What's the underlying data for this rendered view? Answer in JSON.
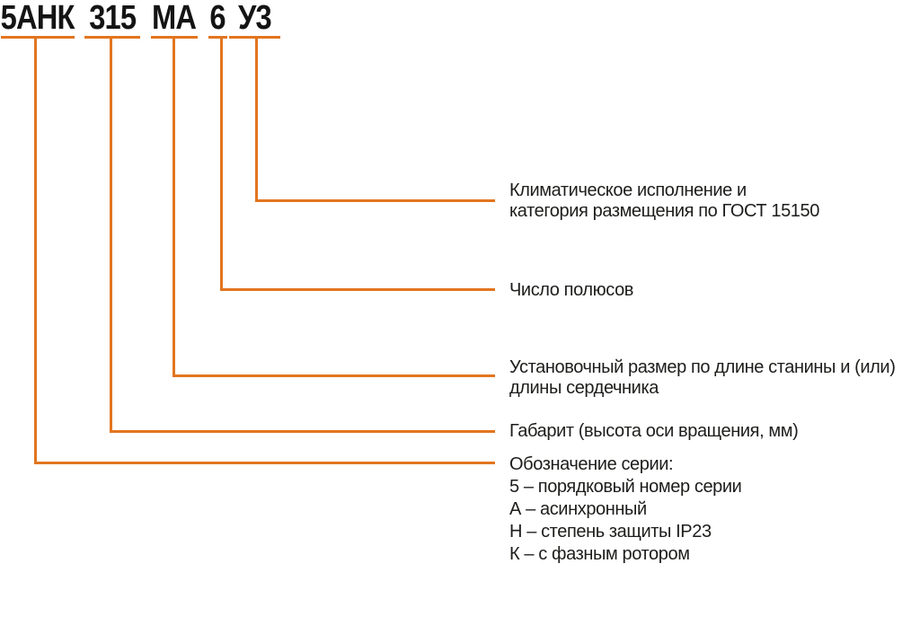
{
  "diagram": {
    "title_code": "5АНК 315 МА 6 У3",
    "code": {
      "segments": [
        {
          "id": "series",
          "text": "5АНК"
        },
        {
          "id": "frame-size",
          "text": "315"
        },
        {
          "id": "core-length",
          "text": "МА"
        },
        {
          "id": "poles",
          "text": "6"
        },
        {
          "id": "climate",
          "text": "У3"
        }
      ]
    },
    "labels": [
      {
        "for": "У3",
        "lines": [
          "Климатическое исполнение и",
          "категория размещения по ГОСТ 15150"
        ]
      },
      {
        "for": "6",
        "lines": [
          "Число полюсов"
        ]
      },
      {
        "for": "МА",
        "lines": [
          "Установочный размер по длине станины и (или)",
          "длины сердечника"
        ]
      },
      {
        "for": "315",
        "lines": [
          "Габарит (высота оси вращения, мм)"
        ]
      },
      {
        "for": "5АНК",
        "lines": [
          "Обозначение серии:",
          "5 – порядковый номер серии",
          "А – асинхронный",
          "Н – степень защиты IP23",
          "К – с фазным ротором"
        ]
      }
    ],
    "colors": {
      "accent": "#E2751F",
      "text": "#1D1D1B"
    }
  }
}
